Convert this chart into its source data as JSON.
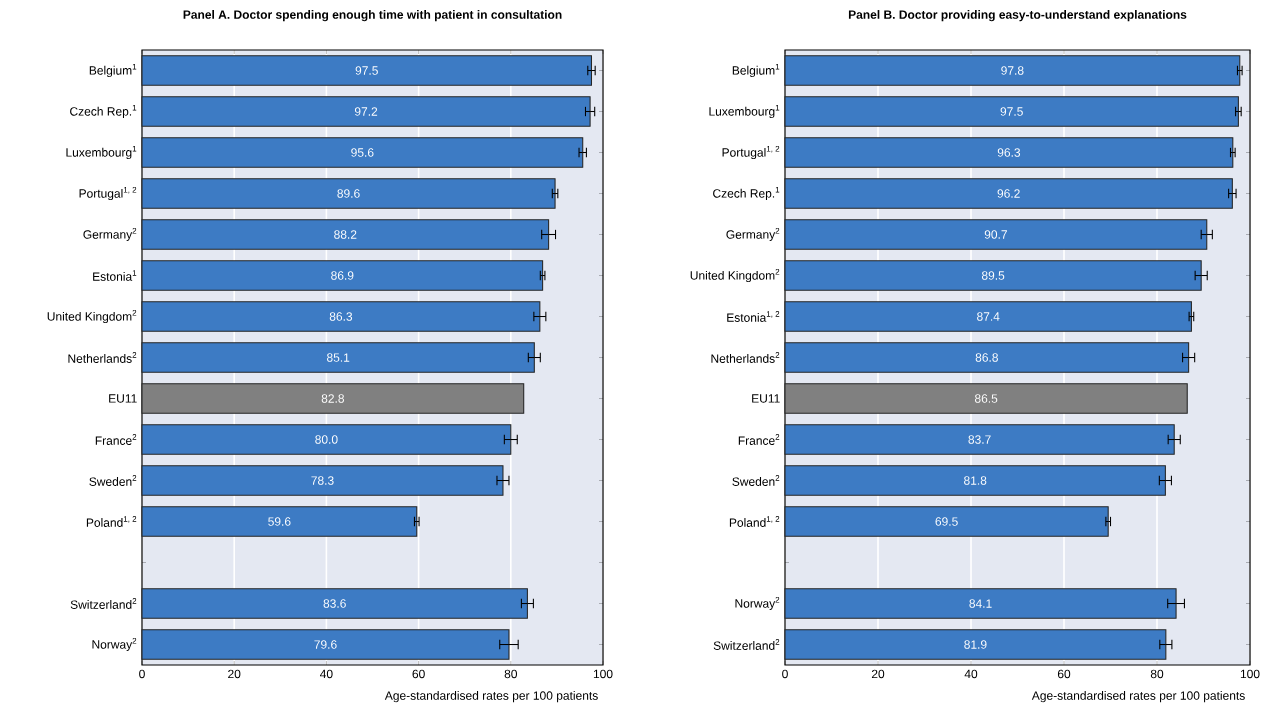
{
  "chart_data": [
    {
      "type": "bar",
      "orientation": "horizontal",
      "title": "Panel A. Doctor spending enough time with patient in consultation",
      "xlabel": "Age-standardised rates per 100 patients",
      "categories": [
        "Belgium$^{1}$",
        "Czech Rep.$^{1}$",
        "Luxembourg$^{1}$",
        "Portugal$^{1, 2}$",
        "Germany$^{2}$",
        "Estonia$^{1}$",
        "United Kingdom$^{2}$",
        "Netherlands$^{2}$",
        "EU11",
        "France$^{2}$",
        "Sweden$^{2}$",
        "Poland$^{1, 2}$",
        null,
        "Switzerland$^{2}$",
        "Norway$^{2}$"
      ],
      "values": [
        97.5,
        97.2,
        95.6,
        89.6,
        88.2,
        86.9,
        86.3,
        85.1,
        82.8,
        80.0,
        78.3,
        59.6,
        null,
        83.6,
        79.6
      ],
      "value_labels": [
        "97.5",
        "97.2",
        "95.6",
        "89.6",
        "88.2",
        "86.9",
        "86.3",
        "85.1",
        "82.8",
        "80.0",
        "78.3",
        "59.6",
        null,
        "83.6",
        "79.6"
      ],
      "errors": [
        0.8,
        1.0,
        0.8,
        0.6,
        1.5,
        0.5,
        1.3,
        1.3,
        null,
        1.4,
        1.3,
        0.5,
        null,
        1.3,
        2.0
      ],
      "colors": [
        "#3d7bc4",
        "#3d7bc4",
        "#3d7bc4",
        "#3d7bc4",
        "#3d7bc4",
        "#3d7bc4",
        "#3d7bc4",
        "#3d7bc4",
        "#808080",
        "#3d7bc4",
        "#3d7bc4",
        "#3d7bc4",
        "#3d7bc4",
        "#3d7bc4",
        "#3d7bc4"
      ],
      "xlim": [
        0,
        100
      ],
      "xticks": [
        0,
        20,
        40,
        60,
        80,
        100
      ],
      "grid": "x"
    },
    {
      "type": "bar",
      "orientation": "horizontal",
      "title": "Panel B. Doctor providing easy-to-understand explanations",
      "xlabel": "Age-standardised rates per 100 patients",
      "categories": [
        "Belgium$^{1}$",
        "Luxembourg$^{1}$",
        "Portugal$^{1, 2}$",
        "Czech Rep.$^{1}$",
        "Germany$^{2}$",
        "United Kingdom$^{2}$",
        "Estonia$^{1, 2}$",
        "Netherlands$^{2}$",
        "EU11",
        "France$^{2}$",
        "Sweden$^{2}$",
        "Poland$^{1, 2}$",
        null,
        "Norway$^{2}$",
        "Switzerland$^{2}$"
      ],
      "values": [
        97.8,
        97.5,
        96.3,
        96.2,
        90.7,
        89.5,
        87.4,
        86.8,
        86.5,
        83.7,
        81.8,
        69.5,
        null,
        84.1,
        81.9
      ],
      "value_labels": [
        "97.8",
        "97.5",
        "96.3",
        "96.2",
        "90.7",
        "89.5",
        "87.4",
        "86.8",
        "86.5",
        "83.7",
        "81.8",
        "69.5",
        null,
        "84.1",
        "81.9"
      ],
      "errors": [
        0.5,
        0.6,
        0.5,
        0.8,
        1.2,
        1.3,
        0.5,
        1.3,
        null,
        1.3,
        1.3,
        0.5,
        null,
        1.8,
        1.3
      ],
      "colors": [
        "#3d7bc4",
        "#3d7bc4",
        "#3d7bc4",
        "#3d7bc4",
        "#3d7bc4",
        "#3d7bc4",
        "#3d7bc4",
        "#3d7bc4",
        "#808080",
        "#3d7bc4",
        "#3d7bc4",
        "#3d7bc4",
        "#3d7bc4",
        "#3d7bc4",
        "#3d7bc4"
      ],
      "xlim": [
        0,
        100
      ],
      "xticks": [
        0,
        20,
        40,
        60,
        80,
        100
      ],
      "grid": "x"
    }
  ]
}
